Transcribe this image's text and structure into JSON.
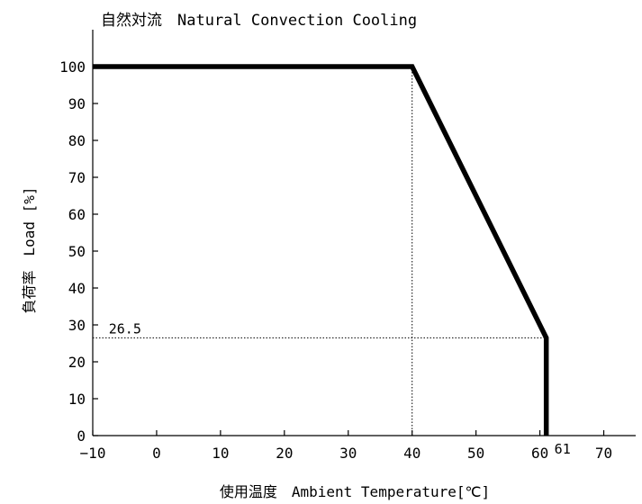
{
  "chart_data": {
    "type": "line",
    "title": "自然対流　Natural Convection Cooling",
    "xlabel": "使用温度　Ambient Temperature[℃]",
    "ylabel": "負荷率　Load [%]",
    "xlim": [
      -10,
      75
    ],
    "ylim": [
      0,
      110
    ],
    "x_ticks": [
      -10,
      0,
      10,
      20,
      30,
      40,
      50,
      60,
      70
    ],
    "y_ticks": [
      0,
      10,
      20,
      30,
      40,
      50,
      60,
      70,
      80,
      90,
      100
    ],
    "grid": false,
    "series": [
      {
        "x": [
          -10,
          40,
          61,
          61
        ],
        "y": [
          100,
          100,
          26.5,
          0
        ]
      }
    ],
    "reference_lines": [
      {
        "x": [
          40,
          40
        ],
        "y": [
          0,
          100
        ],
        "style": "dotted"
      },
      {
        "x": [
          -10,
          61
        ],
        "y": [
          26.5,
          26.5
        ],
        "style": "dotted"
      }
    ],
    "annotations": [
      {
        "text": "26.5",
        "x": -7.5,
        "y": 26.5
      },
      {
        "text": "61",
        "x": 61,
        "y": 0
      }
    ]
  }
}
